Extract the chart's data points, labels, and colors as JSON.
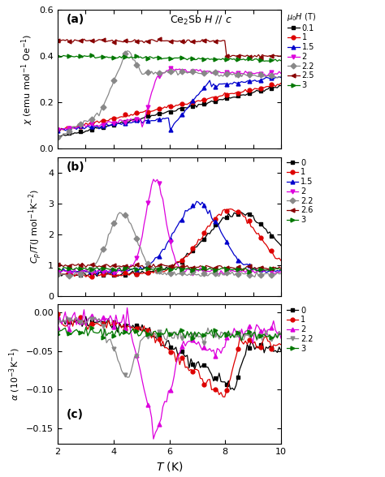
{
  "panel_labels": [
    "(a)",
    "(b)",
    "(c)"
  ],
  "T_range": [
    2,
    10
  ],
  "c_black": "#000000",
  "c_red": "#dd0000",
  "c_blue": "#0000cc",
  "c_magenta": "#dd00dd",
  "c_gray": "#888888",
  "c_darkred": "#880000",
  "c_darkgreen": "#007700",
  "legend_a_labels": [
    "0.1",
    "1",
    "1.5",
    "2",
    "2.2",
    "2.5",
    "3"
  ],
  "legend_b_labels": [
    "0",
    "1",
    "1.5",
    "2",
    "2.2",
    "2.6",
    "3"
  ],
  "legend_c_labels": [
    "0",
    "1",
    "2",
    "2.2",
    "3"
  ],
  "ylabel_a": "$\\chi$ (emu mol$^{-1}$ Oe$^{-1}$)",
  "ylabel_b": "$C_p/T$(J mol$^{-1}$K$^{-2}$)",
  "ylabel_c": "$\\alpha$ (10$^{-3}$K$^{-1}$)",
  "xlabel": "$T$ (K)",
  "annotation": "Ce$_2$Sb $\\mathit{H}$ // $c$",
  "legend_header_a": "$\\mu_0H$ (T)"
}
